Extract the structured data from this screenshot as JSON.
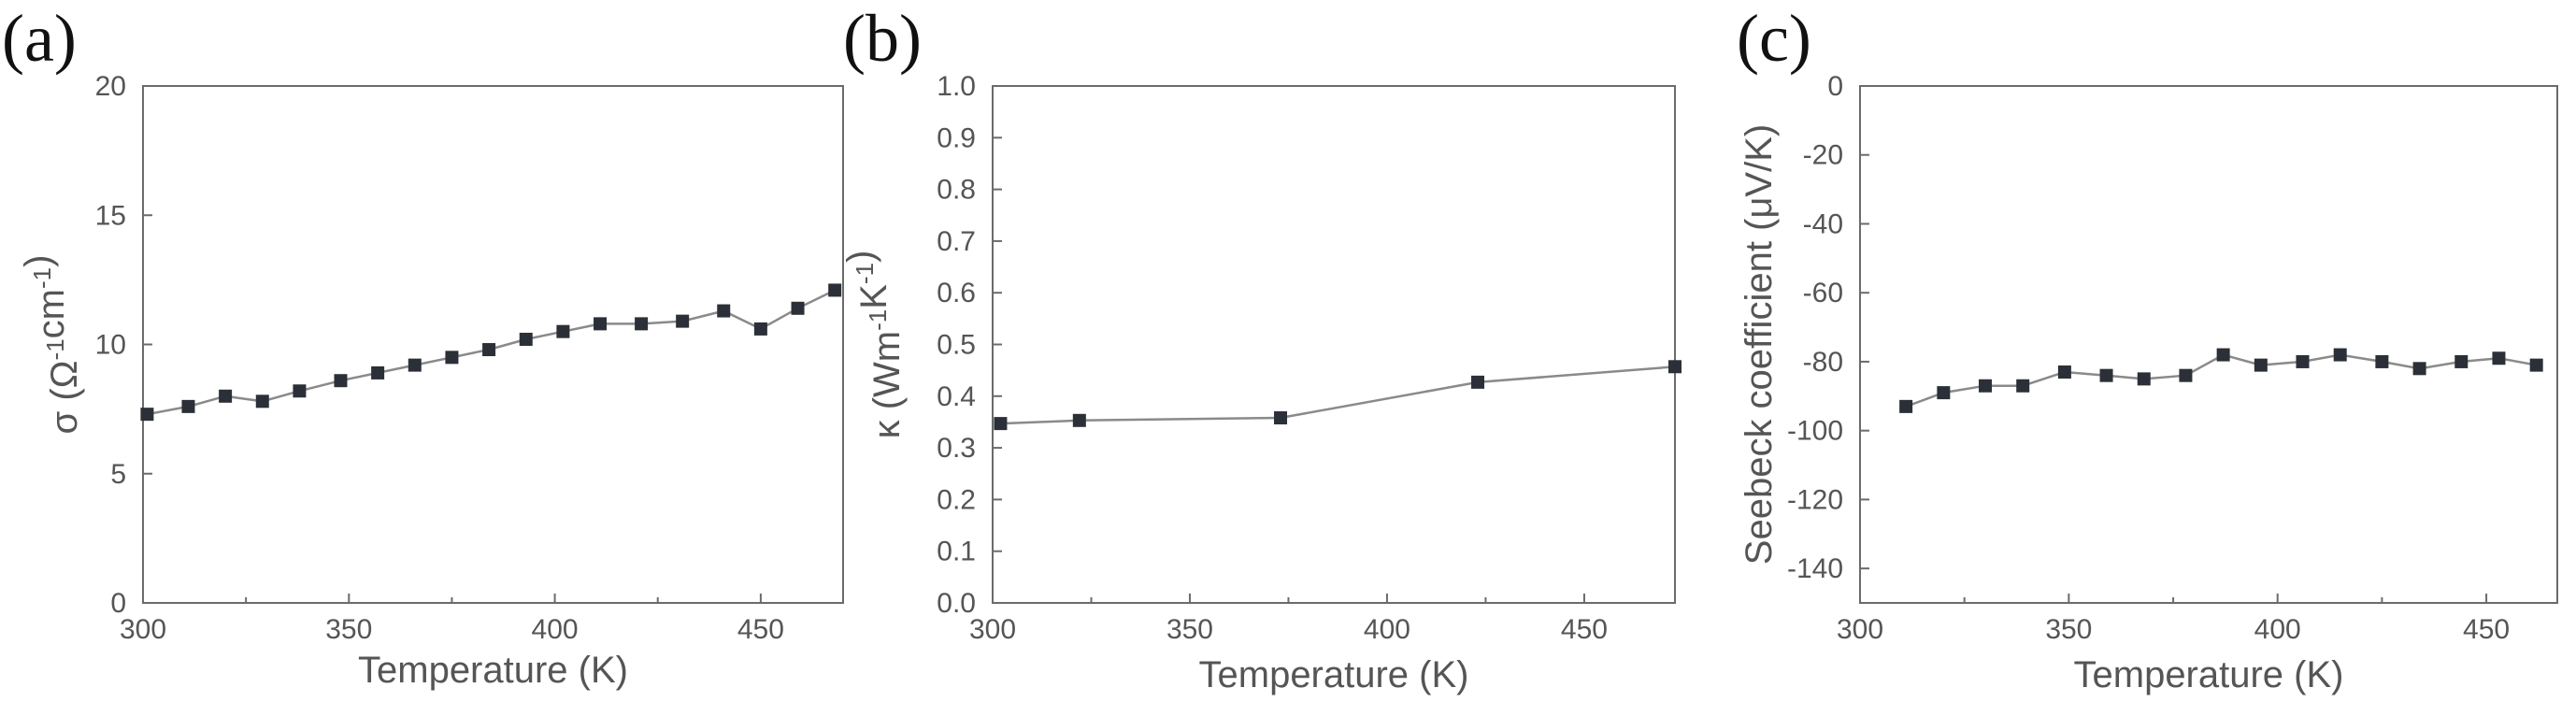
{
  "chart_data": [
    {
      "type": "line",
      "panel_label": "(a)",
      "xlabel": "Temperature (K)",
      "ylabel": {
        "base": "σ (Ω",
        "sup1": "-1",
        "mid": "cm",
        "sup2": "-1",
        "end": ")"
      },
      "xlim": [
        300,
        470
      ],
      "ylim": [
        0,
        20
      ],
      "xticks": [
        300,
        350,
        400,
        450
      ],
      "yticks": [
        0,
        5,
        10,
        15,
        20
      ],
      "grid": false,
      "series": [
        {
          "x": [
            301,
            311,
            320,
            329,
            338,
            348,
            357,
            366,
            375,
            384,
            393,
            402,
            411,
            421,
            431,
            441,
            450,
            459,
            468
          ],
          "y": [
            7.3,
            7.6,
            8.0,
            7.8,
            8.2,
            8.6,
            8.9,
            9.2,
            9.5,
            9.8,
            10.2,
            10.5,
            10.8,
            10.8,
            10.9,
            11.3,
            10.6,
            11.4,
            12.1
          ]
        }
      ]
    },
    {
      "type": "line",
      "panel_label": "(b)",
      "xlabel": "Temperature (K)",
      "ylabel": {
        "base": "κ (Wm",
        "sup1": "-1",
        "mid": "K",
        "sup2": "-1",
        "end": ")"
      },
      "xlim": [
        300,
        473
      ],
      "ylim": [
        0.0,
        1.0
      ],
      "xticks": [
        300,
        350,
        400,
        450
      ],
      "yticks": [
        0.0,
        0.1,
        0.2,
        0.3,
        0.4,
        0.5,
        0.6,
        0.7,
        0.8,
        0.9,
        1.0
      ],
      "grid": false,
      "series": [
        {
          "x": [
            302,
            322,
            373,
            423,
            473
          ],
          "y": [
            0.347,
            0.353,
            0.358,
            0.427,
            0.457
          ]
        }
      ]
    },
    {
      "type": "line",
      "panel_label": "(c)",
      "xlabel": "Temperature (K)",
      "ylabel": {
        "base": "Seebeck coefficient (μV/K)"
      },
      "xlim": [
        300,
        467
      ],
      "ylim": [
        -150,
        0
      ],
      "xticks": [
        300,
        350,
        400,
        450
      ],
      "yticks": [
        0,
        -20,
        -40,
        -60,
        -80,
        -100,
        -120,
        -140
      ],
      "grid": false,
      "series": [
        {
          "x": [
            311,
            320,
            330,
            339,
            349,
            359,
            368,
            378,
            387,
            396,
            406,
            415,
            425,
            434,
            444,
            453,
            462
          ],
          "y": [
            -93,
            -89,
            -87,
            -87,
            -83,
            -84,
            -85,
            -84,
            -78,
            -81,
            -80,
            -78,
            -80,
            -82,
            -80,
            -79,
            -81
          ]
        }
      ]
    }
  ]
}
